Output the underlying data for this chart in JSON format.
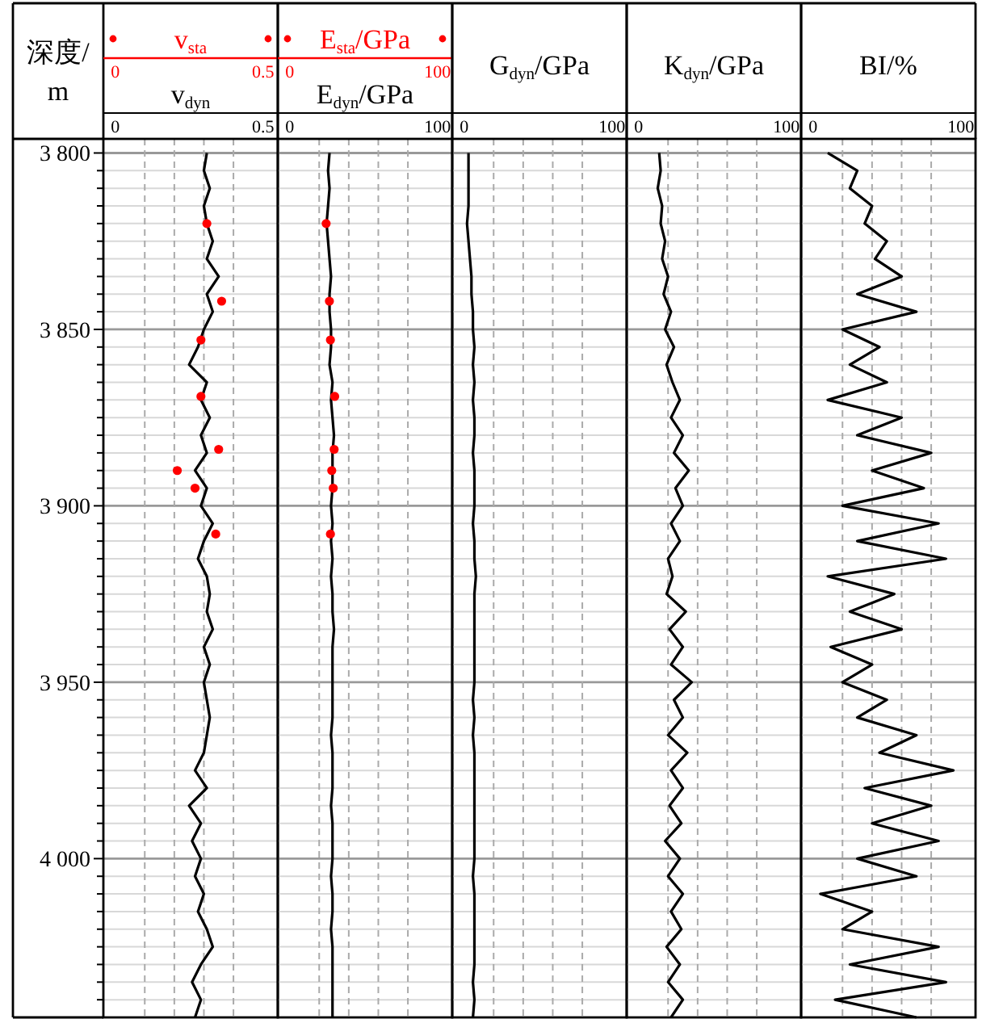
{
  "chart_data": [
    {
      "type": "line",
      "ylabel": "深度/m",
      "xlabel": "v$_{dyn}$",
      "x2label": "v$_{sta}$",
      "xlim": [
        -0.04,
        0.55
      ],
      "xticks": [
        0,
        {
          "value": 0.1,
          "label": null
        },
        {
          "value": 0.2,
          "label": null
        },
        {
          "value": 0.3,
          "label": null
        },
        {
          "value": 0.4,
          "label": null
        },
        0.5
      ],
      "x2lim": [
        -0.04,
        0.55
      ],
      "x2ticks": [
        0,
        0.5
      ],
      "ylim": [
        4045,
        3796
      ],
      "yticks": [
        {
          "value": 3800,
          "label": "3 800"
        },
        {
          "value": 3805,
          "label": null
        },
        {
          "value": 3810,
          "label": null
        },
        {
          "value": 3815,
          "label": null
        },
        {
          "value": 3820,
          "label": null
        },
        {
          "value": 3825,
          "label": null
        },
        {
          "value": 3830,
          "label": null
        },
        {
          "value": 3835,
          "label": null
        },
        {
          "value": 3840,
          "label": null
        },
        {
          "value": 3845,
          "label": null
        },
        {
          "value": 3850,
          "label": "3 850"
        },
        {
          "value": 3855,
          "label": null
        },
        {
          "value": 3860,
          "label": null
        },
        {
          "value": 3865,
          "label": null
        },
        {
          "value": 3870,
          "label": null
        },
        {
          "value": 3875,
          "label": null
        },
        {
          "value": 3880,
          "label": null
        },
        {
          "value": 3885,
          "label": null
        },
        {
          "value": 3890,
          "label": null
        },
        {
          "value": 3895,
          "label": null
        },
        {
          "value": 3900,
          "label": "3 900"
        },
        {
          "value": 3905,
          "label": null
        },
        {
          "value": 3910,
          "label": null
        },
        {
          "value": 3915,
          "label": null
        },
        {
          "value": 3920,
          "label": null
        },
        {
          "value": 3925,
          "label": null
        },
        {
          "value": 3930,
          "label": null
        },
        {
          "value": 3935,
          "label": null
        },
        {
          "value": 3940,
          "label": null
        },
        {
          "value": 3945,
          "label": null
        },
        {
          "value": 3950,
          "label": "3 950"
        },
        {
          "value": 3955,
          "label": null
        },
        {
          "value": 3960,
          "label": null
        },
        {
          "value": 3965,
          "label": null
        },
        {
          "value": 3970,
          "label": null
        },
        {
          "value": 3975,
          "label": null
        },
        {
          "value": 3980,
          "label": null
        },
        {
          "value": 3985,
          "label": null
        },
        {
          "value": 3990,
          "label": null
        },
        {
          "value": 3995,
          "label": null
        },
        {
          "value": 4000,
          "label": "4 000"
        },
        {
          "value": 4005,
          "label": null
        },
        {
          "value": 4010,
          "label": null
        },
        {
          "value": 4015,
          "label": null
        },
        {
          "value": 4020,
          "label": null
        },
        {
          "value": 4025,
          "label": null
        },
        {
          "value": 4030,
          "label": null
        },
        {
          "value": 4035,
          "label": null
        },
        {
          "value": 4040,
          "label": null
        },
        {
          "value": 4045,
          "label": null
        }
      ],
      "grid": true,
      "series": [
        {
          "type": "line",
          "color": "#000000",
          "line_style": "solid",
          "marker": "none",
          "x": [
            0.31,
            0.3,
            0.32,
            0.3,
            0.31,
            0.33,
            0.31,
            0.35,
            0.31,
            0.33,
            0.3,
            0.28,
            0.25,
            0.31,
            0.29,
            0.32,
            0.29,
            0.31,
            0.27,
            0.31,
            0.29,
            0.33,
            0.3,
            0.28,
            0.31,
            0.32,
            0.31,
            0.33,
            0.3,
            0.32,
            0.3,
            0.31,
            0.32,
            0.31,
            0.3,
            0.27,
            0.31,
            0.25,
            0.29,
            0.26,
            0.29,
            0.27,
            0.3,
            0.28,
            0.31,
            0.33,
            0.29,
            0.26,
            0.29,
            0.27
          ],
          "values": [
            3800,
            3805,
            3810,
            3815,
            3820,
            3825,
            3830,
            3835,
            3840,
            3845,
            3850,
            3855,
            3860,
            3865,
            3870,
            3875,
            3880,
            3885,
            3890,
            3895,
            3900,
            3905,
            3910,
            3915,
            3920,
            3925,
            3930,
            3935,
            3940,
            3945,
            3950,
            3955,
            3960,
            3965,
            3970,
            3975,
            3980,
            3985,
            3990,
            3995,
            4000,
            4005,
            4010,
            4015,
            4020,
            4025,
            4030,
            4035,
            4040,
            4045
          ]
        },
        {
          "type": "scatter",
          "axis": "x2",
          "color": "#ff0000",
          "marker": "circle",
          "x": [
            0.31,
            0.36,
            0.29,
            0.29,
            0.35,
            0.21,
            0.27,
            0.34
          ],
          "values": [
            3820,
            3842,
            3853,
            3869,
            3884,
            3890,
            3895,
            3908
          ]
        }
      ]
    },
    {
      "type": "line",
      "xlabel": "E$_{dyn}$/GPa",
      "x2label": "E$_{sta}$/GPa",
      "xlim": [
        -8,
        110
      ],
      "xticks": [
        0,
        {
          "value": 20,
          "label": null
        },
        {
          "value": 40,
          "label": null
        },
        {
          "value": 60,
          "label": null
        },
        {
          "value": 80,
          "label": null
        },
        100
      ],
      "x2lim": [
        -8,
        110
      ],
      "x2ticks": [
        0,
        100
      ],
      "ylim": [
        4045,
        3796
      ],
      "yticks": [
        3800,
        3805,
        3810,
        3815,
        3820,
        3825,
        3830,
        3835,
        3840,
        3845,
        3850,
        3855,
        3860,
        3865,
        3870,
        3875,
        3880,
        3885,
        3890,
        3895,
        3900,
        3905,
        3910,
        3915,
        3920,
        3925,
        3930,
        3935,
        3940,
        3945,
        3950,
        3955,
        3960,
        3965,
        3970,
        3975,
        3980,
        3985,
        3990,
        3995,
        4000,
        4005,
        4010,
        4015,
        4020,
        4025,
        4030,
        4035,
        4040,
        4045
      ],
      "tick_labels": "x",
      "grid": true,
      "series": [
        {
          "type": "line",
          "color": "#000000",
          "line_style": "solid",
          "marker": "none",
          "x": [
            27,
            26,
            27,
            26,
            25,
            26,
            27,
            28,
            27,
            27,
            28,
            28,
            27,
            29,
            28,
            29,
            30,
            29,
            29,
            29,
            28,
            29,
            28,
            29,
            28,
            29,
            29,
            30,
            29,
            29,
            29,
            29,
            29,
            28,
            29,
            29,
            29,
            28,
            29,
            29,
            29,
            28,
            29,
            29,
            28,
            29,
            29,
            29,
            29,
            29
          ],
          "values": [
            3800,
            3805,
            3810,
            3815,
            3820,
            3825,
            3830,
            3835,
            3840,
            3845,
            3850,
            3855,
            3860,
            3865,
            3870,
            3875,
            3880,
            3885,
            3890,
            3895,
            3900,
            3905,
            3910,
            3915,
            3920,
            3925,
            3930,
            3935,
            3940,
            3945,
            3950,
            3955,
            3960,
            3965,
            3970,
            3975,
            3980,
            3985,
            3990,
            3995,
            4000,
            4005,
            4010,
            4015,
            4020,
            4025,
            4030,
            4035,
            4040,
            4045
          ]
        },
        {
          "type": "scatter",
          "axis": "x2",
          "color": "#ff0000",
          "marker": "circle",
          "x": [
            24.7,
            26.9,
            27.6,
            30.5,
            30.1,
            28.5,
            29.5,
            27.6
          ],
          "values": [
            3820,
            3842,
            3853,
            3869,
            3884,
            3890,
            3895,
            3908
          ]
        }
      ]
    },
    {
      "type": "line",
      "xlabel": "G$_{dyn}$/GPa",
      "xlim": [
        -8,
        110
      ],
      "xticks": [
        0,
        {
          "value": 20,
          "label": null
        },
        {
          "value": 40,
          "label": null
        },
        {
          "value": 60,
          "label": null
        },
        {
          "value": 80,
          "label": null
        },
        100
      ],
      "ylim": [
        4045,
        3796
      ],
      "yticks": [
        3800,
        3805,
        3810,
        3815,
        3820,
        3825,
        3830,
        3835,
        3840,
        3845,
        3850,
        3855,
        3860,
        3865,
        3870,
        3875,
        3880,
        3885,
        3890,
        3895,
        3900,
        3905,
        3910,
        3915,
        3920,
        3925,
        3930,
        3935,
        3940,
        3945,
        3950,
        3955,
        3960,
        3965,
        3970,
        3975,
        3980,
        3985,
        3990,
        3995,
        4000,
        4005,
        4010,
        4015,
        4020,
        4025,
        4030,
        4035,
        4040,
        4045
      ],
      "tick_labels": "x",
      "grid": true,
      "series": [
        {
          "type": "line",
          "color": "#000000",
          "line_style": "solid",
          "marker": "none",
          "x": [
            3,
            3,
            3,
            3,
            2,
            3,
            4,
            5,
            5,
            6,
            6,
            7,
            6,
            7,
            6,
            7,
            7,
            6,
            7,
            7,
            7,
            6,
            7,
            7,
            8,
            7,
            7,
            7,
            7,
            7,
            7,
            6,
            7,
            6,
            7,
            7,
            7,
            7,
            7,
            7,
            7,
            6,
            7,
            7,
            7,
            7,
            7,
            6,
            7,
            6
          ],
          "values": [
            3800,
            3805,
            3810,
            3815,
            3820,
            3825,
            3830,
            3835,
            3840,
            3845,
            3850,
            3855,
            3860,
            3865,
            3870,
            3875,
            3880,
            3885,
            3890,
            3895,
            3900,
            3905,
            3910,
            3915,
            3920,
            3925,
            3930,
            3935,
            3940,
            3945,
            3950,
            3955,
            3960,
            3965,
            3970,
            3975,
            3980,
            3985,
            3990,
            3995,
            4000,
            4005,
            4010,
            4015,
            4020,
            4025,
            4030,
            4035,
            4040,
            4045
          ]
        }
      ]
    },
    {
      "type": "line",
      "xlabel": "K$_{dyn}$/GPa",
      "xlim": [
        -8,
        110
      ],
      "xticks": [
        0,
        {
          "value": 20,
          "label": null
        },
        {
          "value": 40,
          "label": null
        },
        {
          "value": 60,
          "label": null
        },
        {
          "value": 80,
          "label": null
        },
        100
      ],
      "ylim": [
        4045,
        3796
      ],
      "yticks": [
        3800,
        3805,
        3810,
        3815,
        3820,
        3825,
        3830,
        3835,
        3840,
        3845,
        3850,
        3855,
        3860,
        3865,
        3870,
        3875,
        3880,
        3885,
        3890,
        3895,
        3900,
        3905,
        3910,
        3915,
        3920,
        3925,
        3930,
        3935,
        3940,
        3945,
        3950,
        3955,
        3960,
        3965,
        3970,
        3975,
        3980,
        3985,
        3990,
        3995,
        4000,
        4005,
        4010,
        4015,
        4020,
        4025,
        4030,
        4035,
        4040,
        4045
      ],
      "tick_labels": "x",
      "grid": true,
      "series": [
        {
          "type": "line",
          "color": "#000000",
          "line_style": "solid",
          "marker": "none",
          "x": [
            14,
            15,
            13,
            16,
            15,
            18,
            16,
            20,
            17,
            22,
            18,
            24,
            19,
            23,
            28,
            22,
            30,
            24,
            34,
            25,
            30,
            22,
            28,
            20,
            23,
            19,
            32,
            21,
            30,
            22,
            36,
            24,
            30,
            20,
            33,
            22,
            30,
            21,
            29,
            18,
            28,
            20,
            30,
            22,
            29,
            19,
            28,
            20,
            30,
            22
          ],
          "values": [
            3800,
            3805,
            3810,
            3815,
            3820,
            3825,
            3830,
            3835,
            3840,
            3845,
            3850,
            3855,
            3860,
            3865,
            3870,
            3875,
            3880,
            3885,
            3890,
            3895,
            3900,
            3905,
            3910,
            3915,
            3920,
            3925,
            3930,
            3935,
            3940,
            3945,
            3950,
            3955,
            3960,
            3965,
            3970,
            3975,
            3980,
            3985,
            3990,
            3995,
            4000,
            4005,
            4010,
            4015,
            4020,
            4025,
            4030,
            4035,
            4040,
            4045
          ]
        }
      ]
    },
    {
      "type": "line",
      "xlabel": "BI/%",
      "xlim": [
        -8,
        110
      ],
      "xticks": [
        0,
        {
          "value": 20,
          "label": null
        },
        {
          "value": 40,
          "label": null
        },
        {
          "value": 60,
          "label": null
        },
        {
          "value": 80,
          "label": null
        },
        100
      ],
      "ylim": [
        4045,
        3796
      ],
      "yticks": [
        3800,
        3805,
        3810,
        3815,
        3820,
        3825,
        3830,
        3835,
        3840,
        3845,
        3850,
        3855,
        3860,
        3865,
        3870,
        3875,
        3880,
        3885,
        3890,
        3895,
        3900,
        3905,
        3910,
        3915,
        3920,
        3925,
        3930,
        3935,
        3940,
        3945,
        3950,
        3955,
        3960,
        3965,
        3970,
        3975,
        3980,
        3985,
        3990,
        3995,
        4000,
        4005,
        4010,
        4015,
        4020,
        4025,
        4030,
        4035,
        4040,
        4045
      ],
      "tick_labels": "x",
      "grid": true,
      "series": [
        {
          "type": "line",
          "color": "#000000",
          "line_style": "solid",
          "marker": "none",
          "x": [
            10,
            30,
            25,
            40,
            35,
            50,
            42,
            60,
            30,
            70,
            20,
            45,
            25,
            50,
            10,
            60,
            30,
            80,
            40,
            75,
            20,
            85,
            30,
            90,
            10,
            55,
            25,
            60,
            12,
            40,
            20,
            50,
            30,
            70,
            45,
            95,
            35,
            80,
            40,
            85,
            30,
            70,
            5,
            40,
            20,
            85,
            25,
            90,
            15,
            70
          ],
          "values": [
            3800,
            3805,
            3810,
            3815,
            3820,
            3825,
            3830,
            3835,
            3840,
            3845,
            3850,
            3855,
            3860,
            3865,
            3870,
            3875,
            3880,
            3885,
            3890,
            3895,
            3900,
            3905,
            3910,
            3915,
            3920,
            3925,
            3930,
            3935,
            3940,
            3945,
            3950,
            3955,
            3960,
            3965,
            3970,
            3975,
            3980,
            3985,
            3990,
            3995,
            4000,
            4005,
            4010,
            4015,
            4020,
            4025,
            4030,
            4035,
            4040,
            4045
          ]
        }
      ]
    }
  ]
}
